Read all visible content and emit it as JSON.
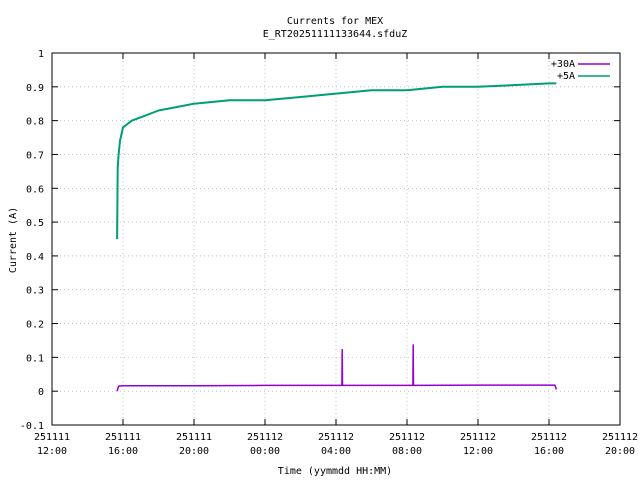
{
  "chart_data": {
    "type": "line",
    "title": "Currents for MEX",
    "subtitle": "E_RT20251111133644.sfduZ",
    "xlabel": "Time (yymmdd HH:MM)",
    "ylabel": "Current (A)",
    "ylim": [
      -0.1,
      1.0
    ],
    "yticks": [
      -0.1,
      0,
      0.1,
      0.2,
      0.3,
      0.4,
      0.5,
      0.6,
      0.7,
      0.8,
      0.9,
      1
    ],
    "ytick_labels": [
      "-0.1",
      "0",
      "0.1",
      "0.2",
      "0.3",
      "0.4",
      "0.5",
      "0.6",
      "0.7",
      "0.8",
      "0.9",
      "1"
    ],
    "xlim": [
      "2025-11-11 12:00",
      "2025-11-12 20:00"
    ],
    "xticks": [
      {
        "date": "251111",
        "time": "12:00"
      },
      {
        "date": "251111",
        "time": "16:00"
      },
      {
        "date": "251111",
        "time": "20:00"
      },
      {
        "date": "251112",
        "time": "00:00"
      },
      {
        "date": "251112",
        "time": "04:00"
      },
      {
        "date": "251112",
        "time": "08:00"
      },
      {
        "date": "251112",
        "time": "12:00"
      },
      {
        "date": "251112",
        "time": "16:00"
      },
      {
        "date": "251112",
        "time": "20:00"
      }
    ],
    "grid": true,
    "legend_position": "top-right",
    "series": [
      {
        "name": "+30A",
        "color": "#9400d3",
        "x": [
          "2025-11-11 15:40",
          "2025-11-11 15:45",
          "2025-11-11 16:00",
          "2025-11-11 20:00",
          "2025-11-12 00:00",
          "2025-11-12 04:00",
          "2025-11-12 04:20",
          "2025-11-12 04:21",
          "2025-11-12 04:22",
          "2025-11-12 08:00",
          "2025-11-12 08:20",
          "2025-11-12 08:21",
          "2025-11-12 08:22",
          "2025-11-12 12:00",
          "2025-11-12 16:00",
          "2025-11-12 16:20",
          "2025-11-12 16:25"
        ],
        "y": [
          0.0,
          0.015,
          0.016,
          0.016,
          0.017,
          0.017,
          0.017,
          0.123,
          0.017,
          0.017,
          0.017,
          0.137,
          0.017,
          0.018,
          0.018,
          0.018,
          0.005
        ]
      },
      {
        "name": "+5A",
        "color": "#009e73",
        "x": [
          "2025-11-11 15:40",
          "2025-11-11 15:42",
          "2025-11-11 15:45",
          "2025-11-11 15:50",
          "2025-11-11 16:00",
          "2025-11-11 16:30",
          "2025-11-11 17:00",
          "2025-11-11 18:00",
          "2025-11-11 19:00",
          "2025-11-11 20:00",
          "2025-11-11 22:00",
          "2025-11-12 00:00",
          "2025-11-12 02:00",
          "2025-11-12 04:00",
          "2025-11-12 06:00",
          "2025-11-12 08:00",
          "2025-11-12 10:00",
          "2025-11-12 12:00",
          "2025-11-12 14:00",
          "2025-11-12 16:00",
          "2025-11-12 16:25"
        ],
        "y": [
          0.45,
          0.66,
          0.7,
          0.74,
          0.78,
          0.8,
          0.81,
          0.83,
          0.84,
          0.85,
          0.86,
          0.86,
          0.87,
          0.88,
          0.89,
          0.89,
          0.9,
          0.9,
          0.905,
          0.91,
          0.91
        ]
      }
    ]
  }
}
